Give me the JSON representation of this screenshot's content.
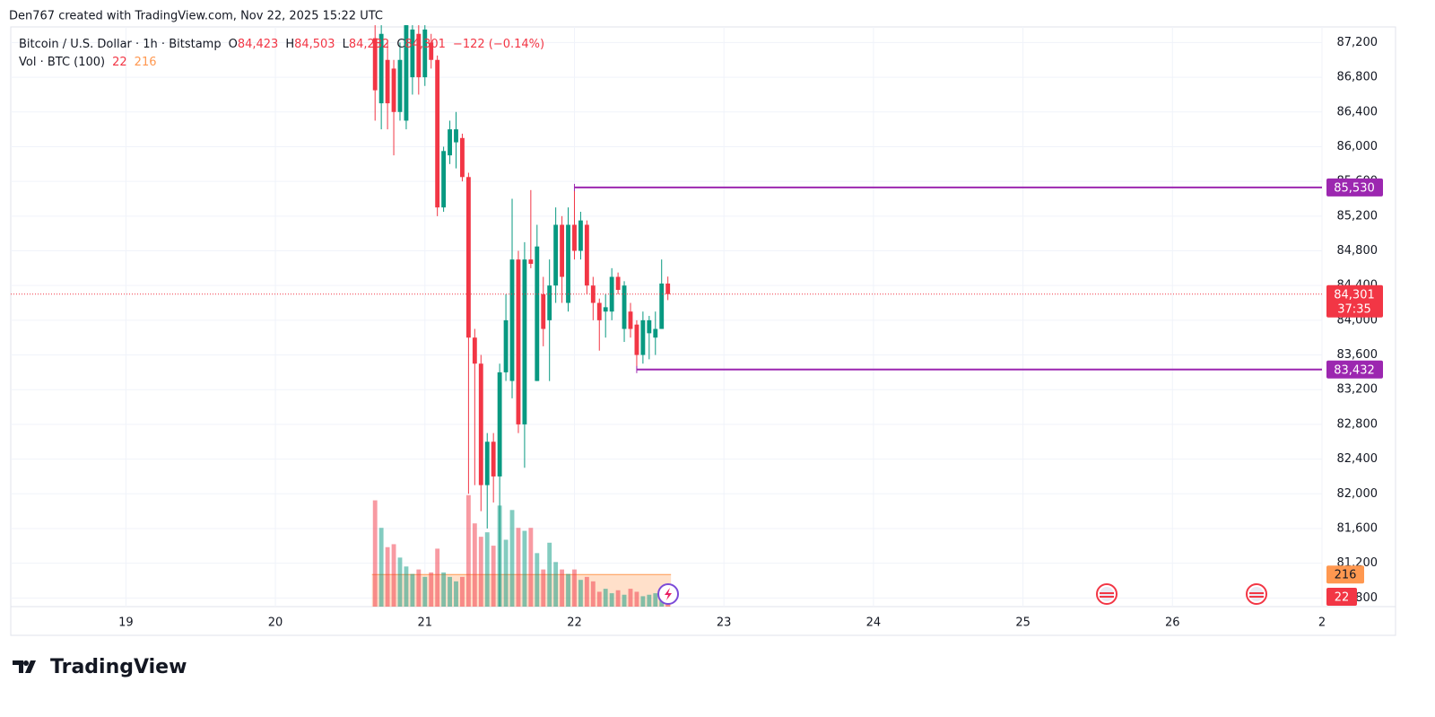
{
  "header": {
    "credit": "Den767 created with TradingView.com, Nov 22, 2025 15:22 UTC",
    "brand": "TradingView"
  },
  "chart_data": {
    "type": "candlestick",
    "legend": {
      "symbol": "Bitcoin / U.S. Dollar · 1h · Bitstamp",
      "o_label": "O",
      "o": "84,423",
      "h_label": "H",
      "h": "84,503",
      "l_label": "L",
      "l": "84,232",
      "c_label": "C",
      "c": "84,301",
      "change": "−122 (−0.14%)"
    },
    "volume_legend": {
      "name": "Vol · BTC (100)"
    },
    "up_color": "#089981",
    "down_color": "#f23645",
    "ma_color": "#ff9850",
    "x": [
      20.6667,
      20.7083,
      20.75,
      20.7917,
      20.8333,
      20.875,
      20.9167,
      20.9583,
      21,
      21.0417,
      21.0833,
      21.125,
      21.1667,
      21.2083,
      21.25,
      21.2917,
      21.3333,
      21.375,
      21.4167,
      21.4583,
      21.5,
      21.5417,
      21.5833,
      21.625,
      21.6667,
      21.7083,
      21.75,
      21.7917,
      21.8333,
      21.875,
      21.9167,
      21.9583,
      22,
      22.0417,
      22.0833,
      22.125,
      22.1667,
      22.2083,
      22.25,
      22.2917,
      22.3333,
      22.375,
      22.4167,
      22.4583,
      22.5,
      22.5417,
      22.5833,
      22.625
    ],
    "open": [
      87250,
      86500,
      87000,
      86900,
      86400,
      86300,
      86800,
      87300,
      86800,
      87200,
      87000,
      85300,
      85900,
      86050,
      86100,
      85650,
      83800,
      83500,
      82100,
      82600,
      82200,
      83400,
      83300,
      84700,
      82800,
      84700,
      83300,
      84300,
      84000,
      84400,
      85100,
      84200,
      85100,
      84800,
      85100,
      84400,
      84200,
      84100,
      84100,
      84500,
      83900,
      84100,
      83950,
      83600,
      83850,
      83800,
      83900,
      84423
    ],
    "high": [
      87400,
      87400,
      87200,
      87000,
      87200,
      87400,
      87400,
      87400,
      87400,
      87300,
      87050,
      86000,
      86300,
      86400,
      86150,
      85700,
      83900,
      83600,
      82700,
      82700,
      83500,
      84300,
      85400,
      84800,
      84900,
      85500,
      85100,
      84500,
      84700,
      85300,
      85200,
      85300,
      85500,
      85250,
      85150,
      84500,
      84250,
      84300,
      84600,
      84550,
      84450,
      84200,
      84000,
      84100,
      84050,
      84100,
      84700,
      84503
    ],
    "low": [
      86300,
      86200,
      86200,
      85900,
      86300,
      86200,
      86600,
      86600,
      86700,
      86900,
      85200,
      85250,
      85800,
      85750,
      85600,
      82000,
      82100,
      81800,
      81600,
      81900,
      80700,
      83300,
      83100,
      82700,
      82300,
      84600,
      83300,
      83700,
      83300,
      84200,
      84200,
      84100,
      84700,
      84700,
      84300,
      84000,
      83650,
      83800,
      84000,
      84300,
      83750,
      83800,
      83432,
      83500,
      83550,
      83600,
      83900,
      84232
    ],
    "close": [
      86650,
      87300,
      86500,
      86400,
      87000,
      87400,
      87350,
      86800,
      87350,
      87000,
      85300,
      85950,
      86200,
      86200,
      85650,
      83800,
      83500,
      82100,
      82600,
      82200,
      83400,
      84000,
      84700,
      82800,
      84700,
      84650,
      84850,
      83900,
      84400,
      85100,
      84500,
      85100,
      84800,
      85150,
      84400,
      84200,
      84000,
      84150,
      84500,
      84350,
      84400,
      83900,
      83600,
      84000,
      84000,
      83900,
      84423,
      84301
    ],
    "volume": [
      715,
      530,
      400,
      420,
      330,
      270,
      220,
      250,
      200,
      230,
      390,
      230,
      200,
      170,
      200,
      750,
      560,
      470,
      500,
      410,
      680,
      450,
      650,
      530,
      510,
      530,
      360,
      250,
      430,
      300,
      250,
      220,
      250,
      180,
      200,
      170,
      100,
      120,
      90,
      110,
      80,
      120,
      100,
      70,
      80,
      90,
      90,
      22
    ],
    "volume_ma": 216,
    "vol_ylim": [
      0,
      3900
    ],
    "levels": [
      {
        "value": 85530,
        "label": "85,530",
        "x_start": 22
      },
      {
        "value": 83432,
        "label": "83,432",
        "x_start": 22.4167
      }
    ],
    "level_color": "#9c27b0",
    "last_price": {
      "value": 84301,
      "label": "84,301",
      "countdown": "37:35"
    },
    "xlim": [
      18.23,
      27
    ],
    "xticks": [
      19,
      20,
      21,
      22,
      23,
      24,
      25,
      26,
      {
        "value": 27,
        "label": "2"
      }
    ],
    "ylim": [
      80700,
      87380
    ],
    "yticks": [
      {
        "value": 80800,
        "label": "80,800"
      },
      {
        "value": 81200,
        "label": "81,200"
      },
      {
        "value": 81600,
        "label": "81,600"
      },
      {
        "value": 82000,
        "label": "82,000"
      },
      {
        "value": 82400,
        "label": "82,400"
      },
      {
        "value": 82800,
        "label": "82,800"
      },
      {
        "value": 83200,
        "label": "83,200"
      },
      {
        "value": 83600,
        "label": "83,600"
      },
      {
        "value": 84000,
        "label": "84,000"
      },
      {
        "value": 84400,
        "label": "84,400"
      },
      {
        "value": 84800,
        "label": "84,800"
      },
      {
        "value": 85200,
        "label": "85,200"
      },
      {
        "value": 85600,
        "label": "85,600"
      },
      {
        "value": 86000,
        "label": "86,000"
      },
      {
        "value": 86400,
        "label": "86,400"
      },
      {
        "value": 86800,
        "label": "86,800"
      },
      {
        "value": 87200,
        "label": "87,200"
      }
    ],
    "grid": true
  }
}
